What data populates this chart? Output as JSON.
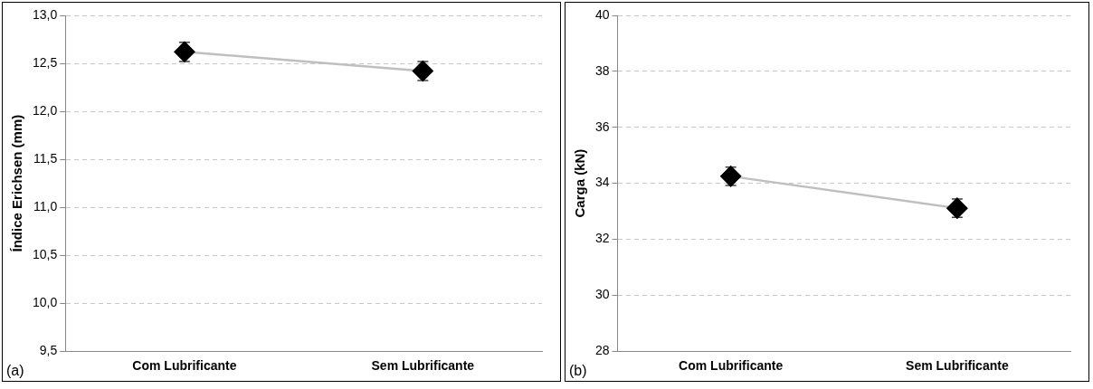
{
  "chart_data": [
    {
      "type": "line",
      "ylabel": "Índice Erichsen (mm)",
      "categories": [
        "Com Lubrificante",
        "Sem Lubrificante"
      ],
      "series": [
        {
          "color": "#000000",
          "values": [
            12.62,
            12.42
          ],
          "errors": [
            0.1,
            0.1
          ]
        }
      ],
      "ylim": [
        9.5,
        13.0
      ],
      "yticks": [
        {
          "value": 9.5,
          "label": "9,5"
        },
        {
          "value": 10,
          "label": "10,0"
        },
        {
          "value": 10.5,
          "label": "10,5"
        },
        {
          "value": 11,
          "label": "11,0"
        },
        {
          "value": 11.5,
          "label": "11,5"
        },
        {
          "value": 12,
          "label": "12,0"
        },
        {
          "value": 12.5,
          "label": "12,5"
        },
        {
          "value": 13,
          "label": "13,0"
        }
      ],
      "grid": "y",
      "marker": "diamond",
      "line_style": "solid",
      "annotations": [
        "(a)"
      ]
    },
    {
      "type": "line",
      "ylabel": "Carga (kN)",
      "categories": [
        "Com Lubrificante",
        "Sem Lubrificante"
      ],
      "series": [
        {
          "color": "#000000",
          "values": [
            34.25,
            33.11
          ],
          "errors": [
            0.33,
            0.33
          ]
        }
      ],
      "ylim": [
        28,
        40
      ],
      "yticks": [
        28,
        30,
        32,
        34,
        36,
        38,
        40
      ],
      "grid": "y",
      "marker": "diamond",
      "line_style": "solid",
      "annotations": [
        "(b)"
      ]
    }
  ]
}
